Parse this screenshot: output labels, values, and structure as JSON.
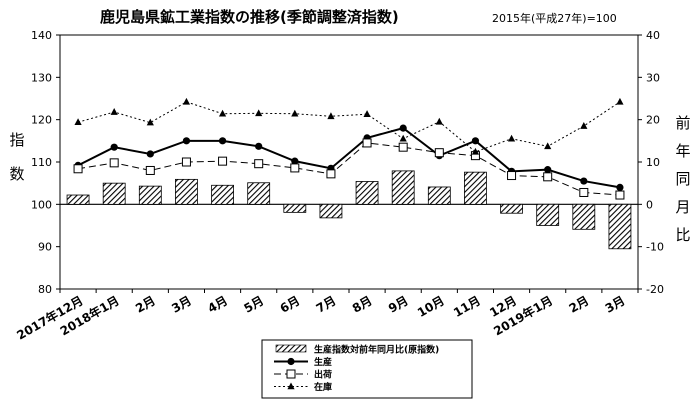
{
  "chart_data": {
    "type": "bar+line",
    "title": "鹿児島県鉱工業指数の推移(季節調整済指数)",
    "subtitle": "2015年(平成27年)=100",
    "ylabel_left": "指数",
    "ylabel_right": "前年同月比",
    "ylim_left": [
      80,
      140
    ],
    "yticks_left": [
      80,
      90,
      100,
      110,
      120,
      130,
      140
    ],
    "ylim_right": [
      -20,
      40
    ],
    "yticks_right": [
      -20,
      -10,
      0,
      10,
      20,
      30,
      40
    ],
    "categories": [
      "2017年12月",
      "2018年1月",
      "2月",
      "3月",
      "4月",
      "5月",
      "6月",
      "7月",
      "8月",
      "9月",
      "10月",
      "11月",
      "12月",
      "2019年1月",
      "2月",
      "3月"
    ],
    "series": [
      {
        "name": "生産指数対前年同月比(原指数)",
        "type": "bar",
        "axis": "right",
        "values": [
          2.2,
          5,
          4.3,
          5.9,
          4.5,
          5.1,
          -1.9,
          -3.2,
          5.4,
          7.9,
          4.1,
          7.6,
          -2.1,
          -5,
          -5.9,
          -10.5
        ]
      },
      {
        "name": "生産",
        "type": "line",
        "axis": "left",
        "marker": "circle",
        "dash": "solid",
        "values": [
          109.2,
          113.5,
          111.9,
          115,
          115,
          113.7,
          110.2,
          108.5,
          115.7,
          118,
          111.5,
          115,
          107.8,
          108.2,
          105.5,
          104
        ]
      },
      {
        "name": "出荷",
        "type": "line",
        "axis": "left",
        "marker": "square",
        "dash": "long-dash",
        "values": [
          108.4,
          109.8,
          108,
          110,
          110.2,
          109.6,
          108.6,
          107.2,
          114.5,
          113.5,
          112.2,
          111.5,
          106.8,
          106.5,
          102.8,
          102.2
        ]
      },
      {
        "name": "在庫",
        "type": "line",
        "axis": "left",
        "marker": "triangle",
        "dash": "dotted",
        "values": [
          119.4,
          121.8,
          119.3,
          124.2,
          121.4,
          121.5,
          121.4,
          120.8,
          121.3,
          115.5,
          119.5,
          112.4,
          115.5,
          113.7,
          118.5,
          124.2
        ]
      }
    ],
    "legend_position": "bottom-center",
    "grid": false
  }
}
